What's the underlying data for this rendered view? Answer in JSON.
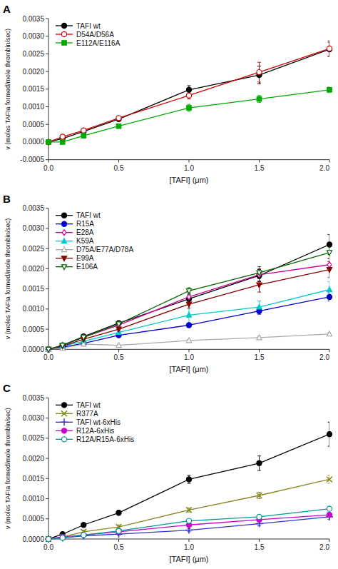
{
  "chart_data": [
    {
      "type": "line",
      "title": "A",
      "xlabel": "[TAFI] (μm)",
      "ylabel": "v (moles TAFIa formed/mole thrombin/sec)",
      "x": [
        0.0,
        0.1,
        0.25,
        0.5,
        1.0,
        1.5,
        2.0
      ],
      "xlim": [
        0.0,
        2.0
      ],
      "xticks": [
        {
          "value": 0.0,
          "label": "0.0"
        },
        0.5,
        {
          "value": 1.0,
          "label": "1.0"
        },
        1.5,
        {
          "value": 2.0,
          "label": "2.0"
        }
      ],
      "ylim": [
        -0.0005,
        0.0035
      ],
      "yticks": [
        {
          "value": -0.0005,
          "label": "-0.0005"
        },
        {
          "value": 0.0,
          "label": "0.0000"
        },
        {
          "value": 0.0005,
          "label": "0.0005"
        },
        {
          "value": 0.001,
          "label": "0.0010"
        },
        {
          "value": 0.0015,
          "label": "0.0015"
        },
        {
          "value": 0.002,
          "label": "0.0020"
        },
        {
          "value": 0.0025,
          "label": "0.0025"
        },
        {
          "value": 0.003,
          "label": "0.0030"
        },
        {
          "value": 0.0035,
          "label": "0.0035"
        }
      ],
      "grid": false,
      "legend": "upper left",
      "series": [
        {
          "name": "TAFI wt",
          "color": "#000000",
          "marker": "circle",
          "values": [
            0.0,
            0.0001,
            0.0003,
            0.00065,
            0.00148,
            0.0019,
            0.00263
          ],
          "yerr": [
            0.0,
            3e-05,
            4e-05,
            5e-05,
            0.00012,
            0.00025,
            0.0002
          ]
        },
        {
          "name": "D54A/D56A",
          "color": "#cc0000",
          "marker": "circle-open",
          "values": [
            0.0,
            0.00015,
            0.00033,
            0.00068,
            0.00132,
            0.00198,
            0.00265
          ],
          "yerr": [
            0.0,
            3e-05,
            5e-05,
            6e-05,
            0.0001,
            0.00028,
            0.00022
          ]
        },
        {
          "name": "E112A/E116A",
          "color": "#00aa00",
          "marker": "square",
          "values": [
            0.0,
            0.0,
            0.00018,
            0.00045,
            0.00097,
            0.00122,
            0.00148
          ],
          "yerr": [
            0.0,
            2e-05,
            3e-05,
            5e-05,
            0.0001,
            0.0001,
            8e-05
          ]
        }
      ]
    },
    {
      "type": "line",
      "title": "B",
      "xlabel": "[TAFI] (μm)",
      "ylabel": "v (moles TAFIa formed/mole thrombin/sec)",
      "x": [
        0.0,
        0.1,
        0.25,
        0.5,
        1.0,
        1.5,
        2.0
      ],
      "xlim": [
        0.0,
        2.0
      ],
      "xticks": [
        {
          "value": 0.0,
          "label": "0.0"
        },
        0.5,
        {
          "value": 1.0,
          "label": "1.0"
        },
        1.5,
        {
          "value": 2.0,
          "label": "2.0"
        }
      ],
      "ylim": [
        0.0,
        0.0035
      ],
      "yticks": [
        {
          "value": 0.0,
          "label": "0.0000"
        },
        {
          "value": 0.0005,
          "label": "0.0005"
        },
        {
          "value": 0.001,
          "label": "0.0010"
        },
        {
          "value": 0.0015,
          "label": "0.0015"
        },
        {
          "value": 0.002,
          "label": "0.0020"
        },
        {
          "value": 0.0025,
          "label": "0.0025"
        },
        {
          "value": 0.003,
          "label": "0.0030"
        },
        {
          "value": 0.0035,
          "label": "0.0035"
        }
      ],
      "grid": false,
      "legend": "upper left",
      "series": [
        {
          "name": "TAFI wt",
          "color": "#000000",
          "marker": "circle",
          "values": [
            0.0,
            0.0001,
            0.00032,
            0.00065,
            0.00125,
            0.00183,
            0.0026
          ],
          "yerr": [
            0.0,
            2e-05,
            4e-05,
            6e-05,
            0.0001,
            0.00015,
            0.00025
          ]
        },
        {
          "name": "R15A",
          "color": "#0000cc",
          "marker": "circle",
          "values": [
            0.0,
            5e-05,
            0.00015,
            0.00035,
            0.0006,
            0.00095,
            0.0013
          ],
          "yerr": [
            0.0,
            2e-05,
            3e-05,
            4e-05,
            5e-05,
            8e-05,
            0.0001
          ]
        },
        {
          "name": "E28A",
          "color": "#cc0099",
          "marker": "diamond-open",
          "values": [
            0.0,
            0.0001,
            0.0003,
            0.0006,
            0.0013,
            0.00185,
            0.0021
          ],
          "yerr": [
            0.0,
            2e-05,
            4e-05,
            6e-05,
            0.0001,
            0.00015,
            0.00015
          ]
        },
        {
          "name": "K59A",
          "color": "#00cccc",
          "marker": "triangle-up",
          "values": [
            0.0,
            8e-05,
            0.0002,
            0.00042,
            0.00085,
            0.00105,
            0.00148
          ],
          "yerr": [
            0.0,
            2e-05,
            4e-05,
            5e-05,
            0.00025,
            0.00015,
            0.0002
          ]
        },
        {
          "name": "D75A/E77A/D78A",
          "color": "#aaaaaa",
          "marker": "triangle-up-open",
          "values": [
            0.0,
            3e-05,
            0.00013,
            0.0001,
            0.00022,
            0.00029,
            0.00038
          ],
          "yerr": [
            0.0,
            1e-05,
            2e-05,
            2e-05,
            3e-05,
            4e-05,
            4e-05
          ]
        },
        {
          "name": "E99A",
          "color": "#880000",
          "marker": "triangle-down",
          "values": [
            0.0,
            8e-05,
            0.00025,
            0.0005,
            0.00112,
            0.0016,
            0.00198
          ],
          "yerr": [
            0.0,
            2e-05,
            4e-05,
            6e-05,
            0.0001,
            0.00018,
            0.0002
          ]
        },
        {
          "name": "E106A",
          "color": "#006600",
          "marker": "triangle-down-open",
          "values": [
            0.0,
            0.0001,
            0.0003,
            0.00063,
            0.00145,
            0.0019,
            0.0024
          ],
          "yerr": [
            0.0,
            2e-05,
            4e-05,
            6e-05,
            8e-05,
            0.00015,
            0.00015
          ]
        }
      ]
    },
    {
      "type": "line",
      "title": "C",
      "xlabel": "[TAFI] (μm)",
      "ylabel": "v (moles TAFIa formed/mole thrombin/sec)",
      "x": [
        0.0,
        0.1,
        0.25,
        0.5,
        1.0,
        1.5,
        2.0
      ],
      "xlim": [
        0.0,
        2.0
      ],
      "xticks": [
        {
          "value": 0.0,
          "label": "0.0"
        },
        0.5,
        {
          "value": 1.0,
          "label": "1.0"
        },
        1.5,
        {
          "value": 2.0,
          "label": "2.0"
        }
      ],
      "ylim": [
        0.0,
        0.0035
      ],
      "yticks": [
        {
          "value": 0.0,
          "label": "0.0000"
        },
        {
          "value": 0.0005,
          "label": "0.0005"
        },
        {
          "value": 0.001,
          "label": "0.0010"
        },
        {
          "value": 0.0015,
          "label": "0.0015"
        },
        {
          "value": 0.002,
          "label": "0.0020"
        },
        {
          "value": 0.0025,
          "label": "0.0025"
        },
        {
          "value": 0.003,
          "label": "0.0030"
        },
        {
          "value": 0.0035,
          "label": "0.0035"
        }
      ],
      "grid": false,
      "legend": "upper left",
      "series": [
        {
          "name": "TAFI wt",
          "color": "#000000",
          "marker": "circle",
          "values": [
            0.0,
            0.00012,
            0.00035,
            0.00065,
            0.00148,
            0.00188,
            0.0026
          ],
          "yerr": [
            0.0,
            2e-05,
            4e-05,
            6e-05,
            0.0001,
            0.00018,
            0.0003
          ]
        },
        {
          "name": "R377A",
          "color": "#888822",
          "marker": "x",
          "values": [
            0.0,
            5e-05,
            0.00018,
            0.0003,
            0.00072,
            0.00108,
            0.00148
          ],
          "yerr": [
            0.0,
            2e-05,
            4e-05,
            5e-05,
            5e-05,
            8e-05,
            0.0001
          ]
        },
        {
          "name": "TAFI wt-6xHis",
          "color": "#3333cc",
          "marker": "plus",
          "values": [
            0.0,
            3e-05,
            8e-05,
            0.00012,
            0.00022,
            0.00038,
            0.00055
          ],
          "yerr": [
            0.0,
            1e-05,
            2e-05,
            3e-05,
            4e-05,
            5e-05,
            6e-05
          ]
        },
        {
          "name": "R12A-6xHis",
          "color": "#cc00cc",
          "marker": "circle",
          "values": [
            0.0,
            5e-05,
            0.0001,
            0.00018,
            0.00035,
            0.00048,
            0.0006
          ],
          "yerr": [
            0.0,
            1e-05,
            2e-05,
            3e-05,
            4e-05,
            5e-05,
            6e-05
          ]
        },
        {
          "name": "R12A/R15A-6xHis",
          "color": "#009999",
          "marker": "circle-open",
          "values": [
            0.0,
            3e-05,
            0.0001,
            0.0002,
            0.00045,
            0.00055,
            0.00075
          ],
          "yerr": [
            0.0,
            1e-05,
            2e-05,
            3e-05,
            4e-05,
            5e-05,
            6e-05
          ]
        }
      ]
    }
  ]
}
